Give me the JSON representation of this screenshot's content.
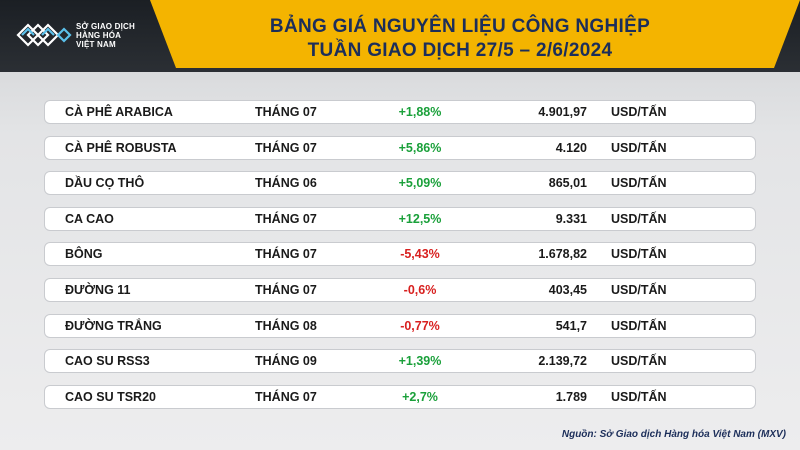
{
  "header": {
    "logo_lines": [
      "SỞ GIAO DỊCH",
      "HÀNG HÓA",
      "VIỆT NAM"
    ],
    "title_line1": "BẢNG GIÁ NGUYÊN LIỆU CÔNG NGHIỆP",
    "title_line2": "TUẦN GIAO DỊCH 27/5 – 2/6/2024"
  },
  "colors": {
    "accent": "#f4b400",
    "title": "#1c2e5a",
    "positive": "#1aa03a",
    "negative": "#d8201f"
  },
  "rows": [
    {
      "name": "CÀ PHÊ ARABICA",
      "month": "THÁNG 07",
      "change": "+1,88%",
      "price": "4.901,97",
      "unit": "USD/TẤN",
      "trend": "pos"
    },
    {
      "name": "CÀ PHÊ ROBUSTA",
      "month": "THÁNG 07",
      "change": "+5,86%",
      "price": "4.120",
      "unit": "USD/TẤN",
      "trend": "pos"
    },
    {
      "name": "DẦU CỌ THÔ",
      "month": "THÁNG 06",
      "change": "+5,09%",
      "price": "865,01",
      "unit": "USD/TẤN",
      "trend": "pos"
    },
    {
      "name": "CA CAO",
      "month": "THÁNG 07",
      "change": "+12,5%",
      "price": "9.331",
      "unit": "USD/TẤN",
      "trend": "pos"
    },
    {
      "name": "BÔNG",
      "month": "THÁNG 07",
      "change": "-5,43%",
      "price": "1.678,82",
      "unit": "USD/TẤN",
      "trend": "neg"
    },
    {
      "name": "ĐƯỜNG 11",
      "month": "THÁNG 07",
      "change": "-0,6%",
      "price": "403,45",
      "unit": "USD/TẤN",
      "trend": "neg"
    },
    {
      "name": "ĐƯỜNG TRẮNG",
      "month": "THÁNG 08",
      "change": "-0,77%",
      "price": "541,7",
      "unit": "USD/TẤN",
      "trend": "neg"
    },
    {
      "name": "CAO SU RSS3",
      "month": "THÁNG 09",
      "change": "+1,39%",
      "price": "2.139,72",
      "unit": "USD/TẤN",
      "trend": "pos"
    },
    {
      "name": "CAO SU TSR20",
      "month": "THÁNG 07",
      "change": "+2,7%",
      "price": "1.789",
      "unit": "USD/TẤN",
      "trend": "pos"
    }
  ],
  "source": "Nguồn: Sở Giao dịch Hàng hóa Việt Nam (MXV)"
}
